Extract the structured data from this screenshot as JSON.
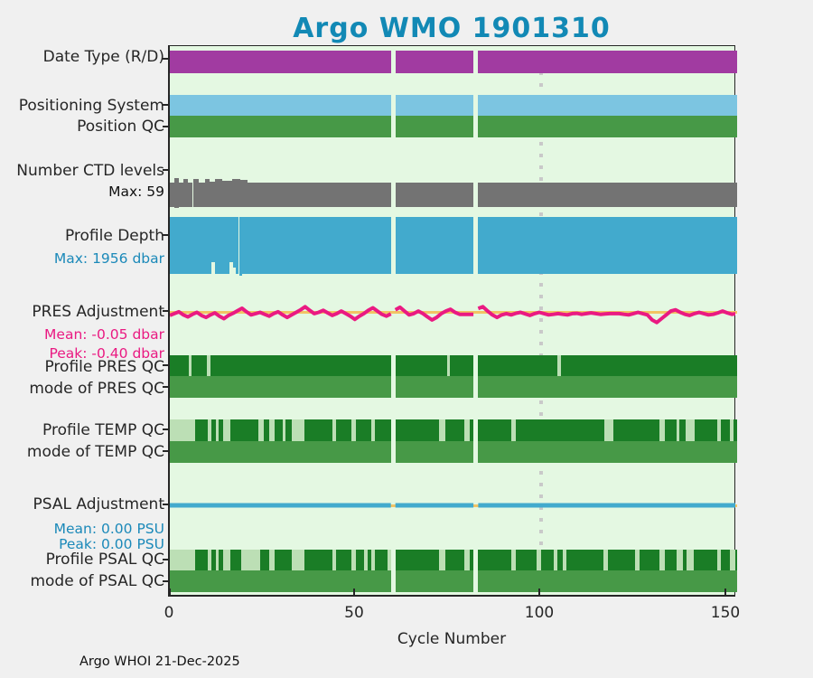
{
  "title": "Argo WMO 1901310",
  "credit": "Argo WHOI 21-Dec-2025",
  "colors": {
    "title": "#1289b5",
    "text": "#262626",
    "purple": "#a13ba1",
    "sky": "#7cc5e1",
    "green": "#479947",
    "gray": "#737373",
    "depth_blue": "#42aacd",
    "pink": "#ea1a82",
    "yellow": "#f2c464",
    "dark_green": "#1a7d26",
    "light_green": "#bcdfb5",
    "plot_bg": "#e4f8e2",
    "dotted": "#c9c9c9",
    "blue_text": "#1b89b9"
  },
  "chart_data": {
    "type": "bar",
    "title": "Argo WMO 1901310",
    "x_axis": {
      "label": "Cycle Number",
      "ticks": [
        0,
        50,
        100,
        150
      ],
      "range": [
        0,
        152.56
      ]
    },
    "missing_cycle_gaps": [
      [
        59.5,
        60.7
      ],
      [
        81.7,
        83
      ]
    ],
    "reference_line_cycle": 100,
    "rows": [
      {
        "id": "date_type",
        "label": "Date Type (R/D)",
        "color": "purple",
        "segments": [
          [
            0,
            59.5
          ],
          [
            60.7,
            81.7
          ],
          [
            83,
            152.56
          ]
        ]
      },
      {
        "id": "pos_system",
        "label": "Positioning System",
        "color": "sky",
        "segments": [
          [
            0,
            59.5
          ],
          [
            60.7,
            81.7
          ],
          [
            83,
            152.56
          ]
        ]
      },
      {
        "id": "position_qc",
        "label": "Position QC",
        "color": "green",
        "segments": [
          [
            0,
            59.5
          ],
          [
            60.7,
            81.7
          ],
          [
            83,
            152.56
          ]
        ]
      },
      {
        "id": "ctd_levels",
        "label": "Number CTD levels",
        "sub": "Max: 59",
        "color": "gray",
        "max": 59,
        "segments": [
          [
            0,
            1.2,
            50
          ],
          [
            1.2,
            2.4,
            59
          ],
          [
            2.4,
            3.6,
            50
          ],
          [
            3.6,
            4.8,
            57
          ],
          [
            4.8,
            6.2,
            50
          ],
          [
            6.2,
            7.8,
            58
          ],
          [
            7.8,
            9.4,
            50
          ],
          [
            9.4,
            10.6,
            57
          ],
          [
            10.6,
            12.2,
            52
          ],
          [
            12.2,
            14,
            57
          ],
          [
            14,
            16.8,
            54
          ],
          [
            16.8,
            19,
            57
          ],
          [
            19,
            21,
            55
          ],
          [
            21,
            59.5,
            50
          ],
          [
            60.7,
            81.7,
            50
          ],
          [
            83,
            152.56,
            50
          ]
        ]
      },
      {
        "id": "profile_depth",
        "label": "Profile Depth",
        "sub": "Max: 1956 dbar",
        "color": "depth_blue",
        "max": 1956,
        "segments": [
          [
            0,
            11.3,
            1900
          ],
          [
            11.3,
            12.1,
            1510
          ],
          [
            12.1,
            16,
            1900
          ],
          [
            16,
            16.9,
            1490
          ],
          [
            16.9,
            17.8,
            1700
          ],
          [
            17.8,
            18.6,
            1900
          ],
          [
            18.6,
            19.4,
            1956
          ],
          [
            19.4,
            59.5,
            1900
          ],
          [
            60.7,
            81.7,
            1900
          ],
          [
            83,
            152.56,
            1900
          ]
        ]
      },
      {
        "id": "pres_adjustment",
        "label": "PRES Adjustment",
        "sub_mean": "Mean: -0.05 dbar",
        "sub_peak": "Peak: -0.40 dbar",
        "color": "pink",
        "ref_color": "yellow",
        "unit": "dbar",
        "line_segments": [
          {
            "start": 0,
            "end": 59.5,
            "values": [
              -0.12,
              -0.05,
              0.02,
              -0.1,
              -0.18,
              -0.08,
              0.0,
              -0.12,
              -0.2,
              -0.1,
              -0.02,
              -0.15,
              -0.25,
              -0.12,
              -0.04,
              0.06,
              0.16,
              0.02,
              -0.1,
              -0.05,
              0.0,
              -0.08,
              -0.15,
              -0.05,
              0.02,
              -0.1,
              -0.2,
              -0.1,
              0.0,
              0.1,
              0.22,
              0.08,
              -0.05,
              0.0,
              0.08,
              -0.02,
              -0.12,
              -0.05,
              0.05,
              -0.05,
              -0.15,
              -0.28,
              -0.15,
              -0.05,
              0.08,
              0.18,
              0.05,
              -0.08,
              -0.15,
              -0.06
            ]
          },
          {
            "start": 60.7,
            "end": 81.7,
            "values": [
              0.1,
              0.2,
              0.05,
              -0.1,
              -0.05,
              0.05,
              -0.05,
              -0.18,
              -0.3,
              -0.2,
              -0.05,
              0.05,
              0.12,
              0.0,
              -0.08,
              -0.08,
              -0.08,
              -0.08
            ]
          },
          {
            "start": 83,
            "end": 152.56,
            "values": [
              0.15,
              0.22,
              0.05,
              -0.1,
              -0.2,
              -0.1,
              -0.05,
              -0.1,
              -0.04,
              0.0,
              -0.06,
              -0.12,
              -0.05,
              0.0,
              -0.05,
              -0.1,
              -0.08,
              -0.05,
              -0.08,
              -0.1,
              -0.05,
              -0.04,
              -0.08,
              -0.05,
              -0.02,
              -0.05,
              -0.08,
              -0.06,
              -0.05,
              -0.05,
              -0.05,
              -0.08,
              -0.1,
              -0.05,
              0.0,
              -0.05,
              -0.1,
              -0.3,
              -0.4,
              -0.25,
              -0.1,
              0.05,
              0.1,
              0.0,
              -0.08,
              -0.12,
              -0.05,
              0.0,
              -0.05,
              -0.1,
              -0.08,
              -0.02,
              0.05,
              -0.02,
              -0.08,
              -0.05
            ]
          }
        ]
      },
      {
        "id": "profile_pres_qc",
        "label": "Profile PRES QC",
        "color": "dark_green",
        "segments": [
          [
            0,
            59.5
          ],
          [
            60.7,
            81.7
          ],
          [
            83,
            152.56
          ]
        ],
        "light_segments": [
          [
            5,
            5.9
          ],
          [
            10,
            10.9
          ],
          [
            74.6,
            75.4
          ],
          [
            104.4,
            105.3
          ]
        ]
      },
      {
        "id": "mode_pres_qc",
        "label": "mode of PRES QC",
        "color": "green",
        "segments": [
          [
            0,
            59.5
          ],
          [
            60.7,
            81.7
          ],
          [
            83,
            152.56
          ]
        ]
      },
      {
        "id": "profile_temp_qc",
        "label": "Profile TEMP QC",
        "color": "dark_green",
        "segments": [
          [
            0,
            59.5
          ],
          [
            60.7,
            81.7
          ],
          [
            83,
            152.56
          ]
        ],
        "light_segments": [
          [
            0,
            6.8
          ],
          [
            10.3,
            11.2
          ],
          [
            12.3,
            13.2
          ],
          [
            14.3,
            16.3
          ],
          [
            23.8,
            25.3
          ],
          [
            26.8,
            28.2
          ],
          [
            30.3,
            31.2
          ],
          [
            32.8,
            36.3
          ],
          [
            43.8,
            44.7
          ],
          [
            48.8,
            50.2
          ],
          [
            54.3,
            55.2
          ],
          [
            72.4,
            74.2
          ],
          [
            79.3,
            80.8
          ],
          [
            91.8,
            93.2
          ],
          [
            117,
            119.3
          ],
          [
            131.8,
            133.2
          ],
          [
            136.3,
            137.2
          ],
          [
            138.8,
            141.2
          ],
          [
            147.3,
            148.2
          ],
          [
            150.8,
            151.6
          ]
        ]
      },
      {
        "id": "mode_temp_qc",
        "label": "mode of TEMP QC",
        "color": "green",
        "segments": [
          [
            0,
            59.5
          ],
          [
            60.7,
            81.7
          ],
          [
            83,
            152.56
          ]
        ]
      },
      {
        "id": "psal_adjustment",
        "label": "PSAL Adjustment",
        "sub_mean": "Mean: 0.00 PSU",
        "sub_peak": "Peak: 0.00 PSU",
        "color": "depth_blue",
        "ref_color": "yellow",
        "unit": "PSU",
        "line_segments": [
          {
            "start": 0,
            "end": 59.5,
            "values": [
              0,
              0
            ]
          },
          {
            "start": 60.7,
            "end": 81.7,
            "values": [
              0,
              0
            ]
          },
          {
            "start": 83,
            "end": 152.56,
            "values": [
              0,
              0
            ]
          }
        ]
      },
      {
        "id": "profile_psal_qc",
        "label": "Profile PSAL QC",
        "color": "dark_green",
        "segments": [
          [
            0,
            59.5
          ],
          [
            60.7,
            81.7
          ],
          [
            83,
            152.56
          ]
        ],
        "light_segments": [
          [
            0,
            6.8
          ],
          [
            10.3,
            11.2
          ],
          [
            12.3,
            13.2
          ],
          [
            14.3,
            16.3
          ],
          [
            19.3,
            24.3
          ],
          [
            26.8,
            28.2
          ],
          [
            32.8,
            36.3
          ],
          [
            43.8,
            44.7
          ],
          [
            48.8,
            50.2
          ],
          [
            52.3,
            53.2
          ],
          [
            54.3,
            55.3
          ],
          [
            58.6,
            59.5
          ],
          [
            72.4,
            74.2
          ],
          [
            79.3,
            80.8
          ],
          [
            91.8,
            93.2
          ],
          [
            98.8,
            99.8
          ],
          [
            103.3,
            104.2
          ],
          [
            105.8,
            106.8
          ],
          [
            116.8,
            118
          ],
          [
            125.3,
            126.3
          ],
          [
            131.8,
            133.2
          ],
          [
            136.3,
            138
          ],
          [
            139,
            141
          ],
          [
            147.3,
            148.2
          ],
          [
            150.8,
            152.2
          ]
        ]
      },
      {
        "id": "mode_psal_qc",
        "label": "mode of PSAL QC",
        "color": "green",
        "segments": [
          [
            0,
            59.5
          ],
          [
            60.7,
            81.7
          ],
          [
            83,
            152.56
          ]
        ]
      }
    ]
  }
}
